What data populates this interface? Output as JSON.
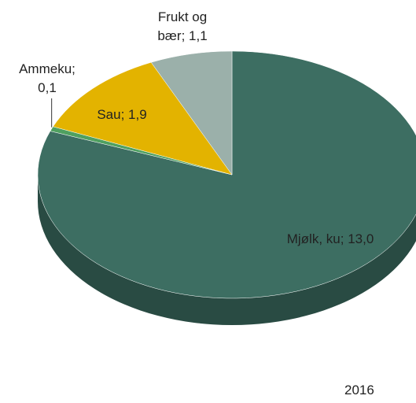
{
  "chart_data": {
    "type": "pie3d",
    "categories": [
      "Mjølk, ku",
      "Ammeku",
      "Sau",
      "Frukt og bær"
    ],
    "values": [
      13.0,
      0.1,
      1.9,
      1.1
    ],
    "value_labels": [
      "13,0",
      "0,1",
      "1,9",
      "1,1"
    ],
    "label_separator": ";",
    "colors": [
      "#3d6e62",
      "#4fa060",
      "#e3b300",
      "#9bb0aa"
    ],
    "annotation": "2016"
  }
}
